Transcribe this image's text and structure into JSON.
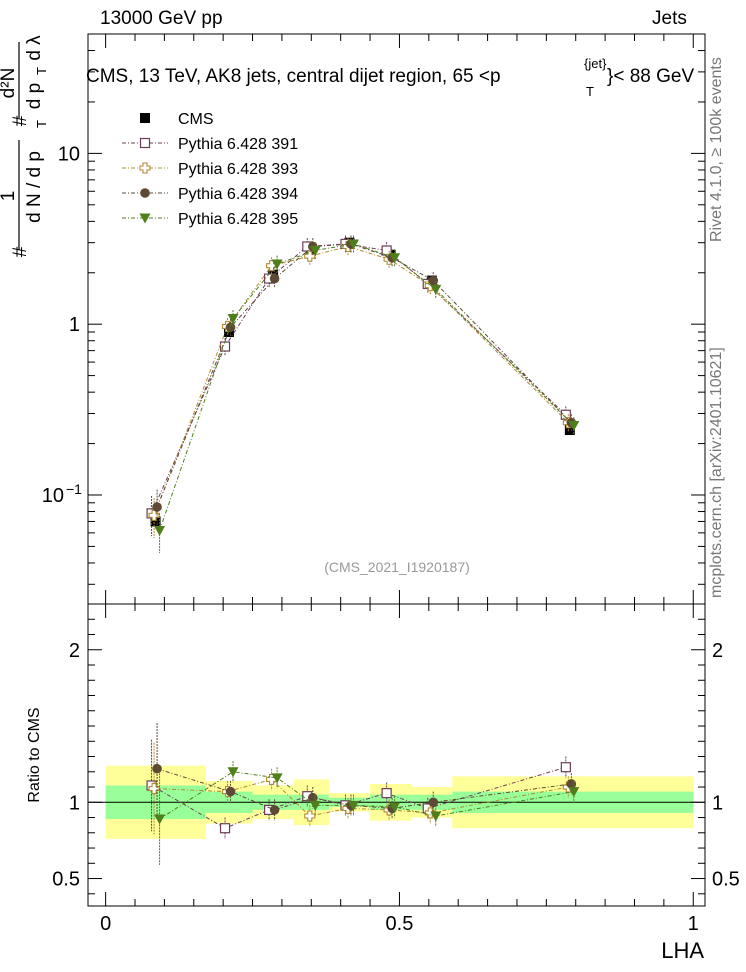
{
  "header": {
    "left": "13000 GeV pp",
    "right": "Jets"
  },
  "side_labels": {
    "rivet": "Rivet 4.1.0, ≥ 100k events",
    "mcplots": "mcplots.cern.ch [arXiv:2401.10621]"
  },
  "chart_data": [
    {
      "type": "scatter",
      "panel": "main",
      "title_parts": [
        "CMS, 13 TeV, AK8 jets, central dijet region, 65 <p",
        "{jet}",
        "T",
        "}< 88 GeV"
      ],
      "watermark": "(CMS_2021_I1920187)",
      "ylabel_parts": [
        "#",
        "1",
        "d N / d p",
        "T",
        "#",
        "d²N",
        "d p",
        "T",
        "d λ"
      ],
      "yscale": "log",
      "ylim": [
        0.023,
        50
      ],
      "xlim": [
        -0.03,
        1.02
      ],
      "y_ticks": [
        {
          "value": 0.1,
          "label": "10",
          "exp": "−1"
        },
        {
          "value": 1,
          "label": "1",
          "exp": ""
        },
        {
          "value": 10,
          "label": "10",
          "exp": ""
        }
      ],
      "x": [
        0.085,
        0.21,
        0.285,
        0.35,
        0.415,
        0.485,
        0.555,
        0.79
      ],
      "series": [
        {
          "name": "CMS",
          "color": "#000000",
          "marker": "square-filled",
          "values": [
            0.07,
            0.9,
            1.95,
            2.75,
            3.0,
            2.55,
            1.8,
            0.24
          ],
          "xerr": [
            [
              0.0,
              0.17
            ],
            [
              0.17,
              0.25
            ],
            [
              0.25,
              0.32
            ],
            [
              0.32,
              0.38
            ],
            [
              0.38,
              0.45
            ],
            [
              0.45,
              0.52
            ],
            [
              0.52,
              0.59
            ],
            [
              0.59,
              1.0
            ]
          ]
        },
        {
          "name": "Pythia 6.428 391",
          "color": "#6b3d5a",
          "marker": "square-open",
          "values": [
            0.078,
            0.74,
            1.85,
            2.85,
            2.95,
            2.7,
            1.72,
            0.295
          ]
        },
        {
          "name": "Pythia 6.428 393",
          "color": "#b08a2c",
          "marker": "cross-open",
          "values": [
            0.076,
            0.97,
            2.2,
            2.5,
            2.85,
            2.4,
            1.68,
            0.265
          ]
        },
        {
          "name": "Pythia 6.428 394",
          "color": "#5e4a34",
          "marker": "circle-filled",
          "values": [
            0.085,
            0.96,
            1.85,
            2.85,
            2.95,
            2.45,
            1.8,
            0.265
          ]
        },
        {
          "name": "Pythia 6.428 395",
          "color": "#4f7f1b",
          "marker": "triangle-down-filled",
          "values": [
            0.062,
            1.08,
            2.25,
            2.7,
            2.95,
            2.45,
            1.6,
            0.255
          ]
        }
      ]
    },
    {
      "type": "scatter",
      "panel": "ratio",
      "ylabel": "Ratio to CMS",
      "xlabel": "LHA",
      "ylim": [
        0.32,
        2.3
      ],
      "y_ticks": [
        0.5,
        1,
        2
      ],
      "x_ticks": [
        0,
        0.5,
        1
      ],
      "band_inner": [
        0.11,
        0.07,
        0.05,
        0.05,
        0.03,
        0.05,
        0.05,
        0.07
      ],
      "band_outer": [
        0.24,
        0.14,
        0.11,
        0.15,
        0.06,
        0.12,
        0.1,
        0.17
      ],
      "series": [
        {
          "name": "Pythia 6.428 391",
          "values": [
            1.11,
            0.83,
            0.95,
            1.04,
            0.98,
            1.06,
            0.96,
            1.23
          ]
        },
        {
          "name": "Pythia 6.428 393",
          "values": [
            1.09,
            1.07,
            1.15,
            0.91,
            0.96,
            0.95,
            0.93,
            1.1
          ]
        },
        {
          "name": "Pythia 6.428 394",
          "values": [
            1.22,
            1.07,
            0.95,
            1.03,
            0.98,
            0.96,
            1.0,
            1.12
          ]
        },
        {
          "name": "Pythia 6.428 395",
          "values": [
            0.89,
            1.2,
            1.16,
            0.98,
            0.98,
            0.97,
            0.91,
            1.07
          ]
        }
      ]
    }
  ]
}
